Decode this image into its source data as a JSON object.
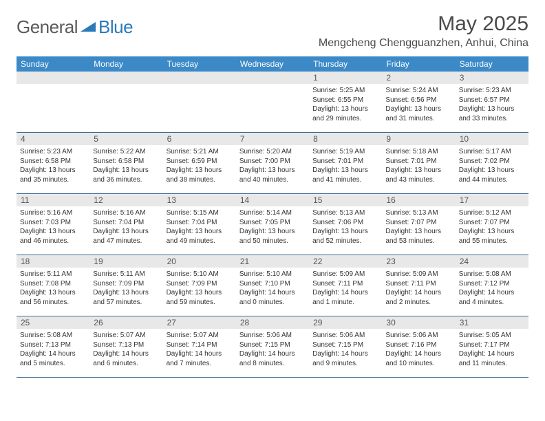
{
  "brand": {
    "part1": "General",
    "part2": "Blue"
  },
  "title": "May 2025",
  "location": "Mengcheng Chengguanzhen, Anhui, China",
  "colors": {
    "header_bg": "#3b89c7",
    "header_text": "#ffffff",
    "daynum_bg": "#e8e8e8",
    "divider": "#3b6a95",
    "brand_gray": "#5a5a5a",
    "brand_blue": "#2a7ab8"
  },
  "weekdays": [
    "Sunday",
    "Monday",
    "Tuesday",
    "Wednesday",
    "Thursday",
    "Friday",
    "Saturday"
  ],
  "weeks": [
    [
      null,
      null,
      null,
      null,
      {
        "n": "1",
        "sr": "5:25 AM",
        "ss": "6:55 PM",
        "dl": "13 hours and 29 minutes."
      },
      {
        "n": "2",
        "sr": "5:24 AM",
        "ss": "6:56 PM",
        "dl": "13 hours and 31 minutes."
      },
      {
        "n": "3",
        "sr": "5:23 AM",
        "ss": "6:57 PM",
        "dl": "13 hours and 33 minutes."
      }
    ],
    [
      {
        "n": "4",
        "sr": "5:23 AM",
        "ss": "6:58 PM",
        "dl": "13 hours and 35 minutes."
      },
      {
        "n": "5",
        "sr": "5:22 AM",
        "ss": "6:58 PM",
        "dl": "13 hours and 36 minutes."
      },
      {
        "n": "6",
        "sr": "5:21 AM",
        "ss": "6:59 PM",
        "dl": "13 hours and 38 minutes."
      },
      {
        "n": "7",
        "sr": "5:20 AM",
        "ss": "7:00 PM",
        "dl": "13 hours and 40 minutes."
      },
      {
        "n": "8",
        "sr": "5:19 AM",
        "ss": "7:01 PM",
        "dl": "13 hours and 41 minutes."
      },
      {
        "n": "9",
        "sr": "5:18 AM",
        "ss": "7:01 PM",
        "dl": "13 hours and 43 minutes."
      },
      {
        "n": "10",
        "sr": "5:17 AM",
        "ss": "7:02 PM",
        "dl": "13 hours and 44 minutes."
      }
    ],
    [
      {
        "n": "11",
        "sr": "5:16 AM",
        "ss": "7:03 PM",
        "dl": "13 hours and 46 minutes."
      },
      {
        "n": "12",
        "sr": "5:16 AM",
        "ss": "7:04 PM",
        "dl": "13 hours and 47 minutes."
      },
      {
        "n": "13",
        "sr": "5:15 AM",
        "ss": "7:04 PM",
        "dl": "13 hours and 49 minutes."
      },
      {
        "n": "14",
        "sr": "5:14 AM",
        "ss": "7:05 PM",
        "dl": "13 hours and 50 minutes."
      },
      {
        "n": "15",
        "sr": "5:13 AM",
        "ss": "7:06 PM",
        "dl": "13 hours and 52 minutes."
      },
      {
        "n": "16",
        "sr": "5:13 AM",
        "ss": "7:07 PM",
        "dl": "13 hours and 53 minutes."
      },
      {
        "n": "17",
        "sr": "5:12 AM",
        "ss": "7:07 PM",
        "dl": "13 hours and 55 minutes."
      }
    ],
    [
      {
        "n": "18",
        "sr": "5:11 AM",
        "ss": "7:08 PM",
        "dl": "13 hours and 56 minutes."
      },
      {
        "n": "19",
        "sr": "5:11 AM",
        "ss": "7:09 PM",
        "dl": "13 hours and 57 minutes."
      },
      {
        "n": "20",
        "sr": "5:10 AM",
        "ss": "7:09 PM",
        "dl": "13 hours and 59 minutes."
      },
      {
        "n": "21",
        "sr": "5:10 AM",
        "ss": "7:10 PM",
        "dl": "14 hours and 0 minutes."
      },
      {
        "n": "22",
        "sr": "5:09 AM",
        "ss": "7:11 PM",
        "dl": "14 hours and 1 minute."
      },
      {
        "n": "23",
        "sr": "5:09 AM",
        "ss": "7:11 PM",
        "dl": "14 hours and 2 minutes."
      },
      {
        "n": "24",
        "sr": "5:08 AM",
        "ss": "7:12 PM",
        "dl": "14 hours and 4 minutes."
      }
    ],
    [
      {
        "n": "25",
        "sr": "5:08 AM",
        "ss": "7:13 PM",
        "dl": "14 hours and 5 minutes."
      },
      {
        "n": "26",
        "sr": "5:07 AM",
        "ss": "7:13 PM",
        "dl": "14 hours and 6 minutes."
      },
      {
        "n": "27",
        "sr": "5:07 AM",
        "ss": "7:14 PM",
        "dl": "14 hours and 7 minutes."
      },
      {
        "n": "28",
        "sr": "5:06 AM",
        "ss": "7:15 PM",
        "dl": "14 hours and 8 minutes."
      },
      {
        "n": "29",
        "sr": "5:06 AM",
        "ss": "7:15 PM",
        "dl": "14 hours and 9 minutes."
      },
      {
        "n": "30",
        "sr": "5:06 AM",
        "ss": "7:16 PM",
        "dl": "14 hours and 10 minutes."
      },
      {
        "n": "31",
        "sr": "5:05 AM",
        "ss": "7:17 PM",
        "dl": "14 hours and 11 minutes."
      }
    ]
  ],
  "labels": {
    "sunrise": "Sunrise: ",
    "sunset": "Sunset: ",
    "daylight": "Daylight: "
  }
}
